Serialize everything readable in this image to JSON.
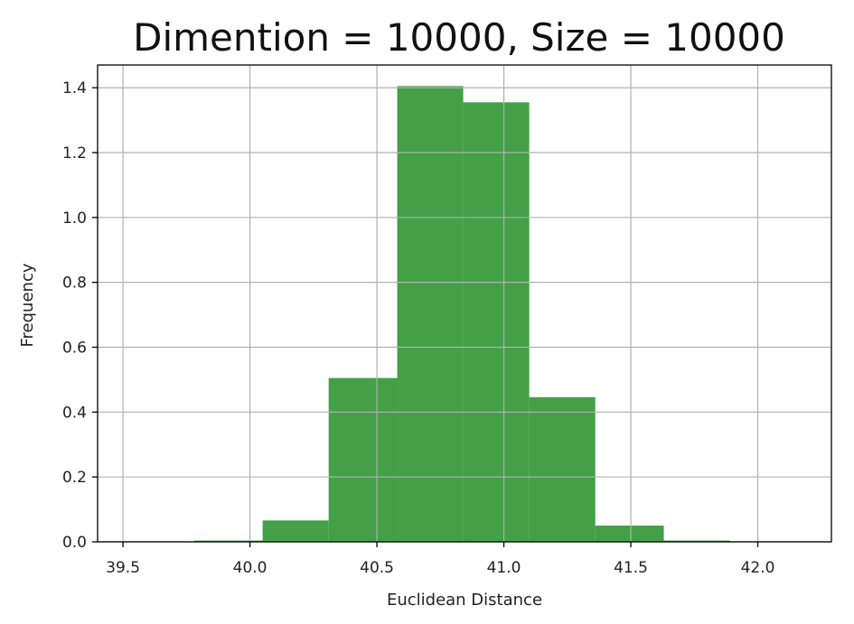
{
  "chart_data": {
    "type": "bar",
    "title": "Dimention = 10000, Size = 10000",
    "xlabel": "Euclidean Distance",
    "ylabel": "Frequency",
    "xlim": [
      39.4,
      42.29
    ],
    "ylim": [
      0,
      1.47
    ],
    "xticks": [
      "39.5",
      "40.0",
      "40.5",
      "41.0",
      "41.5",
      "42.0"
    ],
    "yticks": [
      "0.0",
      "0.2",
      "0.4",
      "0.6",
      "0.8",
      "1.0",
      "1.2",
      "1.4"
    ],
    "grid": true,
    "legend": "none",
    "color": "#43a047",
    "bins": [
      {
        "x0": 39.51,
        "x1": 39.78,
        "value": 0.0
      },
      {
        "x0": 39.78,
        "x1": 40.05,
        "value": 0.004
      },
      {
        "x0": 40.05,
        "x1": 40.31,
        "value": 0.066
      },
      {
        "x0": 40.31,
        "x1": 40.58,
        "value": 0.505
      },
      {
        "x0": 40.58,
        "x1": 40.84,
        "value": 1.405
      },
      {
        "x0": 40.84,
        "x1": 41.1,
        "value": 1.355
      },
      {
        "x0": 41.1,
        "x1": 41.36,
        "value": 0.446
      },
      {
        "x0": 41.36,
        "x1": 41.63,
        "value": 0.05
      },
      {
        "x0": 41.63,
        "x1": 41.89,
        "value": 0.004
      },
      {
        "x0": 41.89,
        "x1": 42.16,
        "value": 0.0
      }
    ]
  }
}
